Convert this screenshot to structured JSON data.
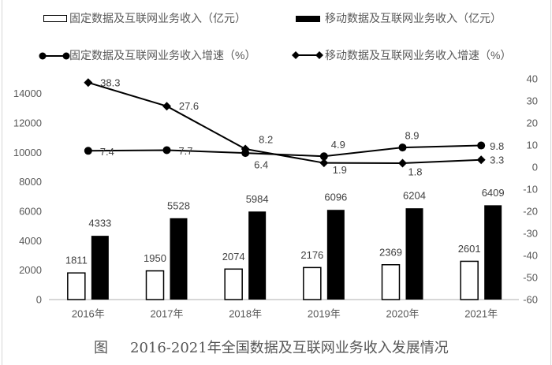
{
  "legend": {
    "items": [
      {
        "label": "固定数据及互联网业务收入（亿元）",
        "symbol": "white-bar"
      },
      {
        "label": "移动数据及互联网业务收入（亿元）",
        "symbol": "black-bar"
      },
      {
        "label": "固定数据及互联网业务收入增速（%）",
        "symbol": "line-circle"
      },
      {
        "label": "移动数据及互联网业务收入增速（%）",
        "symbol": "line-diamond"
      }
    ]
  },
  "figure": {
    "caption_prefix": "图",
    "caption_title": "2016-2021年全国数据及互联网业务收入发展情况"
  },
  "chart_data": {
    "type": "bar",
    "title": "2016-2021年全国数据及互联网业务收入发展情况",
    "xlabel": "",
    "ylabel": "",
    "ylabel_right": "",
    "grid": false,
    "legend_position": "top",
    "categories": [
      "2016年",
      "2017年",
      "2018年",
      "2019年",
      "2020年",
      "2021年"
    ],
    "y_left": {
      "min": 0,
      "max": 15000,
      "ticks": [
        0,
        2000,
        4000,
        6000,
        8000,
        10000,
        12000,
        14000
      ]
    },
    "y_right": {
      "min": -60,
      "max": 40,
      "ticks": [
        -60,
        -50,
        -40,
        -30,
        -20,
        -10,
        0,
        10,
        20,
        30,
        40
      ]
    },
    "ylim": [
      0,
      15000
    ],
    "ylim_right": [
      -60,
      40
    ],
    "colors": {
      "bar_fixed_fill": "#ffffff",
      "bar_fixed_stroke": "#000000",
      "bar_mobile_fill": "#000000",
      "line": "#000000",
      "axis": "#bfbfbf"
    },
    "series": [
      {
        "name": "固定数据及互联网业务收入（亿元）",
        "type": "bar",
        "axis": "left",
        "style": "white",
        "values": [
          1811,
          1950,
          2074,
          2176,
          2369,
          2601
        ]
      },
      {
        "name": "移动数据及互联网业务收入（亿元）",
        "type": "bar",
        "axis": "left",
        "style": "black",
        "values": [
          4333,
          5528,
          5984,
          6096,
          6204,
          6409
        ]
      },
      {
        "name": "固定数据及互联网业务收入增速（%）",
        "type": "line",
        "axis": "right",
        "marker": "circle",
        "values": [
          7.4,
          7.7,
          6.4,
          4.9,
          8.9,
          9.8
        ],
        "label_offsets": [
          [
            24,
            1
          ],
          [
            24,
            1
          ],
          [
            20,
            15
          ],
          [
            18,
            -15
          ],
          [
            12,
            -15
          ],
          [
            20,
            1
          ]
        ]
      },
      {
        "name": "移动数据及互联网业务收入增速（%）",
        "type": "line",
        "axis": "right",
        "marker": "diamond",
        "values": [
          38.3,
          27.6,
          8.2,
          1.9,
          1.8,
          3.3
        ],
        "label_offsets": [
          [
            28,
            0
          ],
          [
            28,
            0
          ],
          [
            26,
            -12
          ],
          [
            20,
            9
          ],
          [
            16,
            11
          ],
          [
            20,
            0
          ]
        ]
      }
    ]
  }
}
